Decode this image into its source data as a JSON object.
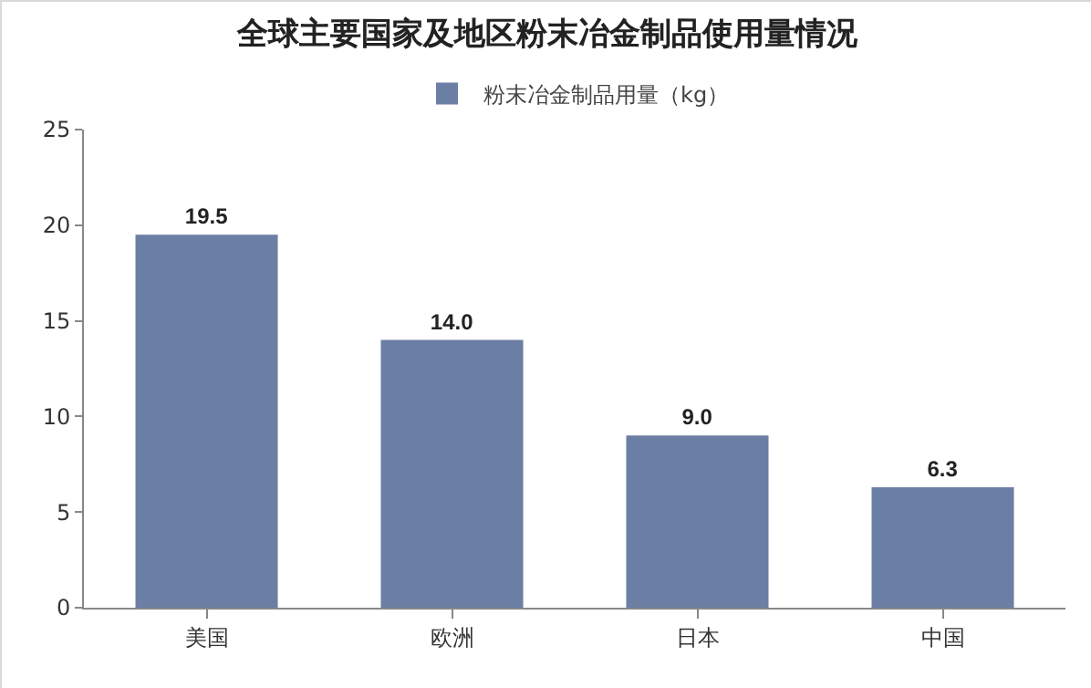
{
  "chart_data": {
    "type": "bar",
    "title": "全球主要国家及地区粉末冶金制品使用量情况",
    "categories": [
      "美国",
      "欧洲",
      "日本",
      "中国"
    ],
    "series": [
      {
        "name": "粉末冶金制品用量（kg）",
        "color": "#6b7ea3",
        "values": [
          19.5,
          14.0,
          9.0,
          6.3
        ]
      }
    ],
    "value_labels": [
      "19.5",
      "14.0",
      "9.0",
      "6.3"
    ],
    "ylim": [
      0,
      25
    ],
    "yticks": [
      0,
      5,
      10,
      15,
      20,
      25
    ],
    "grid": false,
    "legend": "top"
  }
}
